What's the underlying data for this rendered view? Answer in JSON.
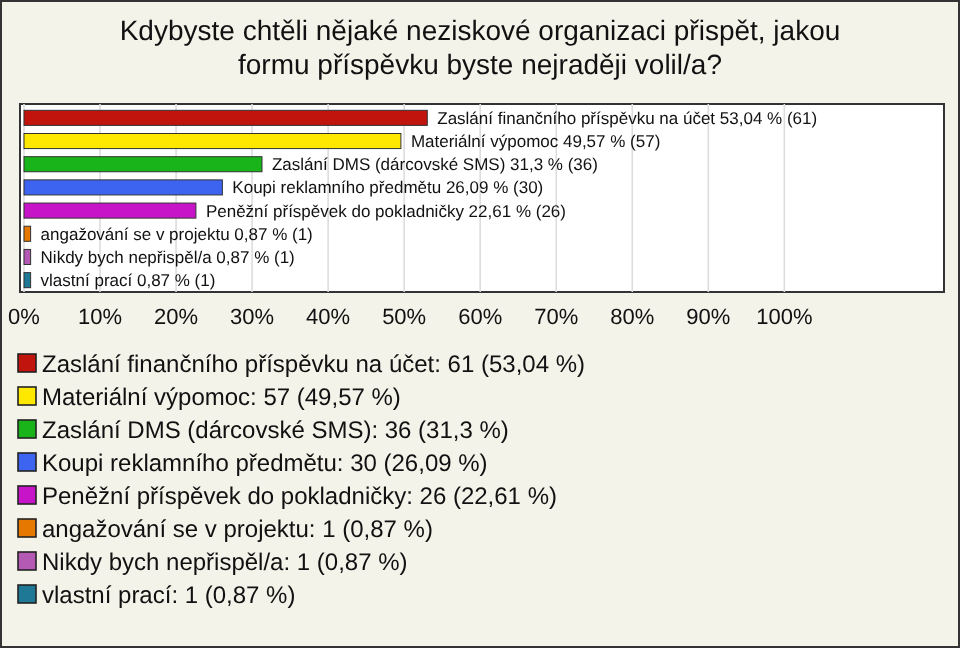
{
  "chart_data": {
    "type": "bar",
    "orientation": "horizontal",
    "title": "Kdybyste chtěli nějaké neziskové organizaci přispět, jakou formu příspěvku byste nejraději volil/a?",
    "categories": [
      "Zaslání finančního příspěvku na účet",
      "Materiální výpomoc",
      "Zaslání DMS (dárcovské SMS)",
      "Koupi reklamního předmětu",
      "Peněžní příspěvek do pokladničky",
      "angažování se v projektu",
      "Nikdy bych nepřispěl/a",
      "vlastní prací"
    ],
    "values": [
      53.04,
      49.57,
      31.3,
      26.09,
      22.61,
      0.87,
      0.87,
      0.87
    ],
    "colors": [
      "#c0140c",
      "#ffe800",
      "#19b419",
      "#3c64f0",
      "#c814c8",
      "#e67800",
      "#b45ab4",
      "#1e7896"
    ],
    "value_labels": [
      "53,04 % (61)",
      "49,57 % (57)",
      "31,3 % (36)",
      "26,09 % (30)",
      "22,61 % (26)",
      "0,87 % (1)",
      "0,87 % (1)",
      "0,87 % (1)"
    ],
    "annotations": [
      "Zaslání finančního příspěvku na účet: 61 (53,04 %)",
      "Materiální výpomoc: 57 (49,57 %)",
      "Zaslání DMS (dárcovské SMS): 36 (31,3 %)",
      "Koupi reklamního předmětu: 30 (26,09 %)",
      "Peněžní příspěvek do pokladničky: 26 (22,61 %)",
      "angažování se v projektu: 1 (0,87 %)",
      "Nikdy bych nepřispěl/a: 1 (0,87 %)",
      "vlastní prací: 1 (0,87 %)"
    ],
    "xlim": [
      0,
      121
    ],
    "xticks": [
      {
        "value": 0,
        "label": "0%"
      },
      {
        "value": 10,
        "label": "10%"
      },
      {
        "value": 20,
        "label": "20%"
      },
      {
        "value": 30,
        "label": "30%"
      },
      {
        "value": 40,
        "label": "40%"
      },
      {
        "value": 50,
        "label": "50%"
      },
      {
        "value": 60,
        "label": "60%"
      },
      {
        "value": 70,
        "label": "70%"
      },
      {
        "value": 80,
        "label": "80%"
      },
      {
        "value": 90,
        "label": "90%"
      },
      {
        "value": 100,
        "label": "100%"
      }
    ],
    "grid": "x"
  }
}
